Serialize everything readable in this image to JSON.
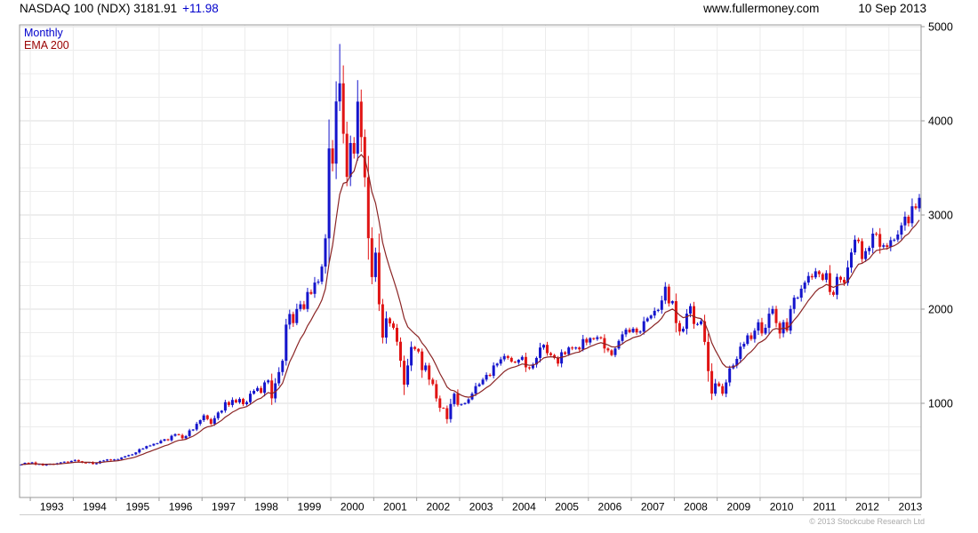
{
  "header": {
    "symbol_and_price": "NASDAQ 100 (NDX) 3181.91",
    "change": "+11.98",
    "website": "www.fullermoney.com",
    "date": "10 Sep 2013"
  },
  "legend": {
    "monthly": "Monthly",
    "ema": "EMA 200"
  },
  "footer": {
    "copyright": "© 2013 Stockcube Research Ltd"
  },
  "colors": {
    "up": "#1414cc",
    "down": "#e01414",
    "ema": "#8b2525",
    "grid_minor": "#ececec",
    "grid_major": "#dcdcdc",
    "border": "#9a9a9a",
    "axis_text": "#000000"
  },
  "chart_data": {
    "type": "candlestick",
    "title": "NASDAQ 100 (NDX)",
    "timeframe": "Monthly",
    "overlay": "EMA 200",
    "last_price": 3181.91,
    "change": 11.98,
    "as_of_date": "10 Sep 2013",
    "ylim": [
      0,
      5020
    ],
    "y_ticks": [
      1000,
      2000,
      3000,
      4000,
      5000
    ],
    "x_axis_years": [
      "1993",
      "1994",
      "1995",
      "1996",
      "1997",
      "1998",
      "1999",
      "2000",
      "2001",
      "2002",
      "2003",
      "2004",
      "2005",
      "2006",
      "2007",
      "2008",
      "2009",
      "2010",
      "2011",
      "2012",
      "2013"
    ],
    "grid": true,
    "legend_position": "top-left",
    "start_month": "1992-10",
    "monthly_closes": [
      350,
      368,
      360,
      372,
      350,
      355,
      340,
      352,
      356,
      350,
      362,
      372,
      380,
      375,
      389,
      398,
      385,
      370,
      368,
      375,
      355,
      362,
      385,
      392,
      404,
      395,
      404,
      408,
      425,
      438,
      450,
      458,
      478,
      512,
      520,
      545,
      552,
      570,
      576,
      602,
      618,
      608,
      655,
      672,
      662,
      628,
      652,
      712,
      722,
      782,
      821,
      872,
      832,
      782,
      842,
      902,
      922,
      1012,
      982,
      1036,
      1010,
      1046,
      990,
      1012,
      1102,
      1132,
      1162,
      1112,
      1222,
      1242,
      1052,
      1212,
      1332,
      1452,
      1836,
      1948,
      1852,
      2002,
      2052,
      2002,
      2182,
      2162,
      2282,
      2292,
      2452,
      2752,
      3707,
      3546,
      4206,
      4398,
      3862,
      3404,
      3764,
      3652,
      4204,
      3828,
      3400,
      2754,
      2341,
      2600,
      2052,
      1698,
      1902,
      1848,
      1802,
      1654,
      1452,
      1198,
      1402,
      1598,
      1577,
      1550,
      1352,
      1402,
      1252,
      1204,
      1052,
      952,
      948,
      832,
      992,
      1102,
      984,
      992,
      1002,
      1042,
      1102,
      1182,
      1202,
      1252,
      1302,
      1292,
      1402,
      1422,
      1467,
      1502,
      1482,
      1442,
      1432,
      1462,
      1492,
      1382,
      1372,
      1412,
      1482,
      1592,
      1621,
      1532,
      1512,
      1482,
      1422,
      1542,
      1522,
      1592,
      1582,
      1592,
      1572,
      1682,
      1645,
      1692,
      1682,
      1702,
      1692,
      1582,
      1562,
      1512,
      1582,
      1662,
      1732,
      1782,
      1756,
      1792,
      1752,
      1762,
      1872,
      1902,
      1932,
      1982,
      1992,
      2092,
      2239,
      2062,
      2085,
      1852,
      1762,
      1792,
      1952,
      2032,
      1842,
      1842,
      1872,
      1652,
      1342,
      1102,
      1211,
      1182,
      1102,
      1222,
      1372,
      1402,
      1472,
      1602,
      1632,
      1722,
      1682,
      1772,
      1860,
      1742,
      1802,
      1952,
      2002,
      1852,
      1742,
      1862,
      1772,
      2002,
      2122,
      2122,
      2217,
      2282,
      2352,
      2338,
      2402,
      2372,
      2312,
      2382,
      2182,
      2152,
      2342,
      2312,
      2278,
      2442,
      2602,
      2738,
      2722,
      2532,
      2616,
      2652,
      2802,
      2798,
      2662,
      2678,
      2660,
      2732,
      2738,
      2792,
      2890,
      2982,
      2912,
      3092,
      3072,
      3181.91
    ],
    "wick_overrides": [
      {
        "month": "2000-03",
        "high": 4816
      },
      {
        "month": "2001-09",
        "low": 1088
      },
      {
        "month": "2002-10",
        "low": 795
      },
      {
        "month": "2008-11",
        "low": 1036
      }
    ]
  }
}
